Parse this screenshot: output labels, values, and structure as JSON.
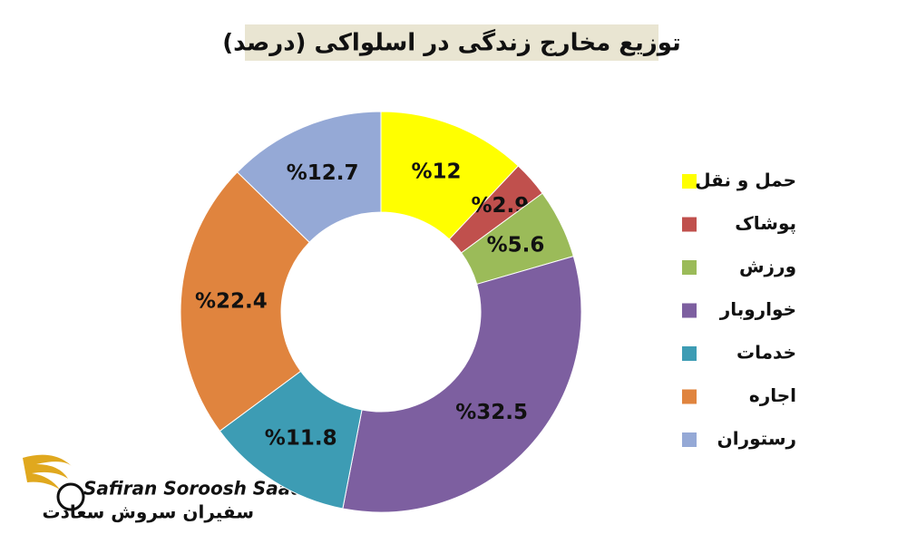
{
  "chart_data": {
    "type": "donut",
    "title": "توزیع مخارج زندگی در اسلواکی (درصد)",
    "categories": [
      "حمل و نقل",
      "پوشاک",
      "ورزش",
      "خواروبار",
      "خدمات",
      "اجاره",
      "رستوران"
    ],
    "values": [
      12,
      2.9,
      5.6,
      32.5,
      11.8,
      22.4,
      12.7
    ],
    "value_labels": [
      "%12",
      "%2.9",
      "%5.6",
      "%32.5",
      "%11.8",
      "%22.4",
      "%12.7"
    ],
    "colors": [
      "#ffff00",
      "#c0504d",
      "#9bbb59",
      "#7d5fa0",
      "#3d9cb4",
      "#e0843e",
      "#95a9d6"
    ],
    "legend": "right"
  },
  "logo": {
    "name": "Safiran Soroosh Saadat",
    "name_fa": "سفیران سروش سعادت"
  }
}
